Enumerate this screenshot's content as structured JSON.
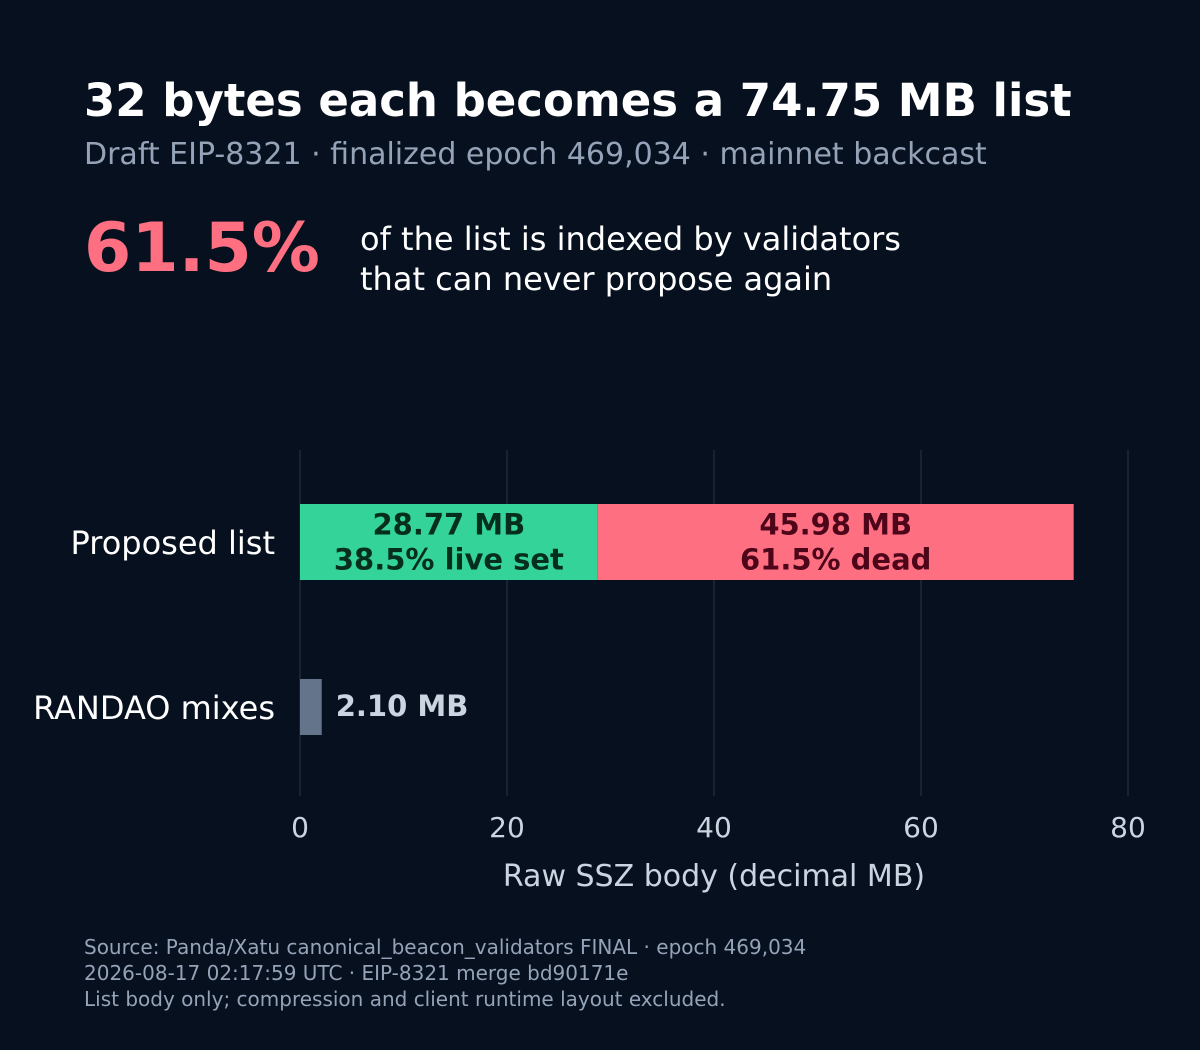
{
  "title": "32 bytes each becomes a 74.75 MB list",
  "subtitle": "Draft EIP-8321 · finalized epoch 469,034 · mainnet backcast",
  "headline": {
    "value": "61.5%",
    "line1": "of the list is indexed by validators",
    "line2": "that can never propose again"
  },
  "colors": {
    "background": "#07101e",
    "live": "#34d399",
    "dead": "#ff6f82",
    "randao": "#64748b",
    "live_label": "#052e1f",
    "dead_label": "#4c0519",
    "randao_label": "#cbd5e1",
    "grid": "#1e293b",
    "tick": "#cbd5e1"
  },
  "chart_data": {
    "type": "bar",
    "orientation": "horizontal",
    "stacked": true,
    "categories": [
      "Proposed list",
      "RANDAO mixes"
    ],
    "series": [
      {
        "key": "live",
        "values": [
          28.77,
          null
        ],
        "labels": [
          [
            "28.77 MB",
            "38.5% live set"
          ],
          null
        ]
      },
      {
        "key": "dead",
        "values": [
          45.98,
          null
        ],
        "labels": [
          [
            "45.98 MB",
            "61.5% dead"
          ],
          null
        ]
      },
      {
        "key": "randao",
        "values": [
          null,
          2.1
        ],
        "labels": [
          null,
          [
            "2.10 MB"
          ]
        ]
      }
    ],
    "xlabel": "Raw SSZ body (decimal MB)",
    "xlim": [
      0,
      80
    ],
    "xticks": [
      0,
      20,
      40,
      60,
      80
    ],
    "grid": true
  },
  "footer": {
    "line1": "Source: Panda/Xatu canonical_beacon_validators FINAL · epoch 469,034",
    "line2": "2026-08-17 02:17:59 UTC · EIP-8321 merge bd90171e",
    "line3": "List body only; compression and client runtime layout excluded."
  }
}
